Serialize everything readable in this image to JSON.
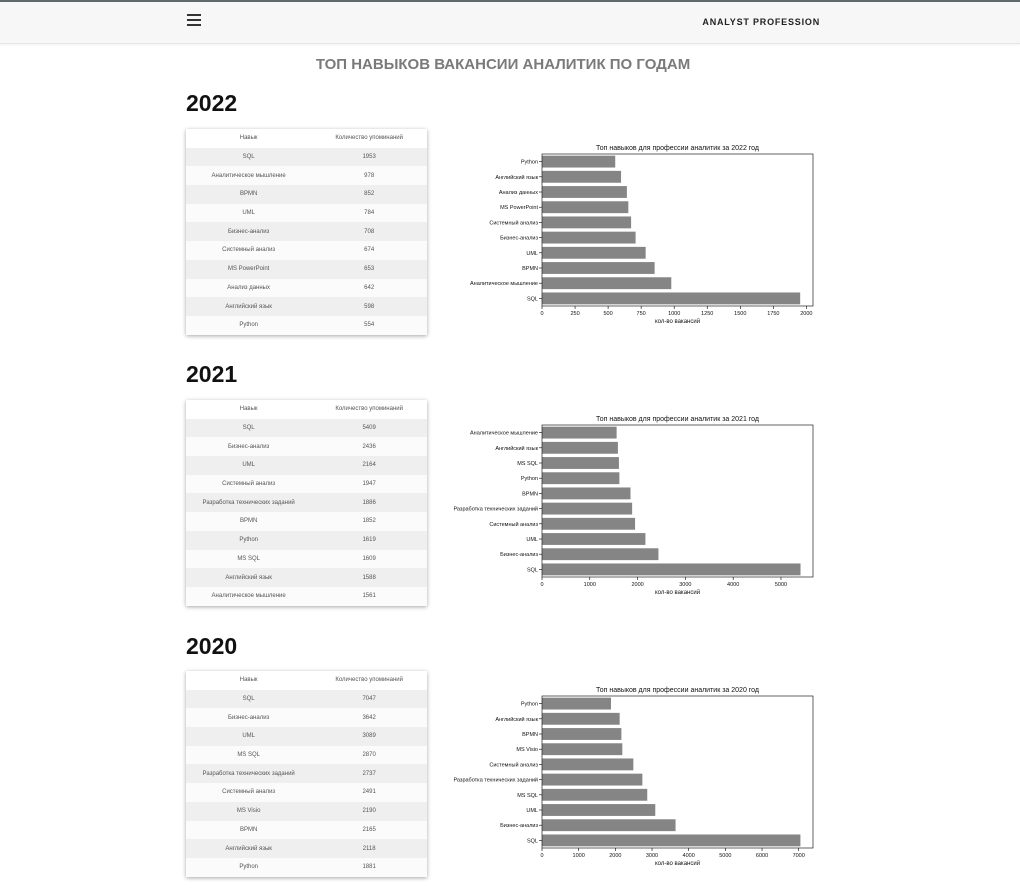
{
  "header": {
    "brand": "ANALYST PROFESSION",
    "menu_icon": "hamburger-icon"
  },
  "page_title": "ТОП НАВЫКОВ ВАКАНСИИ АНАЛИТИК ПО ГОДАМ",
  "table_headers": {
    "skill": "Навык",
    "count": "Количество упоминаний"
  },
  "colors": {
    "bar": "#858585"
  },
  "years": [
    {
      "year": "2022",
      "rows": [
        {
          "skill": "SQL",
          "count": "1953"
        },
        {
          "skill": "Аналитическое мышление",
          "count": "978"
        },
        {
          "skill": "BPMN",
          "count": "852"
        },
        {
          "skill": "UML",
          "count": "784"
        },
        {
          "skill": "Бизнес-анализ",
          "count": "708"
        },
        {
          "skill": "Системный анализ",
          "count": "674"
        },
        {
          "skill": "MS PowerPoint",
          "count": "653"
        },
        {
          "skill": "Анализ данных",
          "count": "642"
        },
        {
          "skill": "Английский язык",
          "count": "598"
        },
        {
          "skill": "Python",
          "count": "554"
        }
      ]
    },
    {
      "year": "2021",
      "rows": [
        {
          "skill": "SQL",
          "count": "5409"
        },
        {
          "skill": "Бизнес-анализ",
          "count": "2436"
        },
        {
          "skill": "UML",
          "count": "2164"
        },
        {
          "skill": "Системный анализ",
          "count": "1947"
        },
        {
          "skill": "Разработка технических заданий",
          "count": "1886"
        },
        {
          "skill": "BPMN",
          "count": "1852"
        },
        {
          "skill": "Python",
          "count": "1619"
        },
        {
          "skill": "MS SQL",
          "count": "1609"
        },
        {
          "skill": "Английский язык",
          "count": "1588"
        },
        {
          "skill": "Аналитическое мышление",
          "count": "1561"
        }
      ]
    },
    {
      "year": "2020",
      "rows": [
        {
          "skill": "SQL",
          "count": "7047"
        },
        {
          "skill": "Бизнес-анализ",
          "count": "3642"
        },
        {
          "skill": "UML",
          "count": "3089"
        },
        {
          "skill": "MS SQL",
          "count": "2870"
        },
        {
          "skill": "Разработка технических заданий",
          "count": "2737"
        },
        {
          "skill": "Системный анализ",
          "count": "2491"
        },
        {
          "skill": "MS Visio",
          "count": "2190"
        },
        {
          "skill": "BPMN",
          "count": "2165"
        },
        {
          "skill": "Английский язык",
          "count": "2118"
        },
        {
          "skill": "Python",
          "count": "1881"
        }
      ]
    }
  ],
  "chart_data": [
    {
      "type": "bar",
      "orientation": "horizontal",
      "title": "Топ навыков для профессии аналитик за 2022 год",
      "xlabel": "кол-во вакансий",
      "ylabel": "",
      "categories": [
        "SQL",
        "Аналитическое мышление",
        "BPMN",
        "UML",
        "Бизнес-анализ",
        "Системный анализ",
        "MS PowerPoint",
        "Анализ данных",
        "Английский язык",
        "Python"
      ],
      "values": [
        1953,
        978,
        852,
        784,
        708,
        674,
        653,
        642,
        598,
        554
      ],
      "xlim": [
        0,
        2050
      ],
      "xticks": [
        0,
        250,
        500,
        750,
        1000,
        1250,
        1500,
        1750,
        2000
      ],
      "grid": false
    },
    {
      "type": "bar",
      "orientation": "horizontal",
      "title": "Топ навыков для профессии аналитик за 2021 год",
      "xlabel": "кол-во вакансий",
      "ylabel": "",
      "categories": [
        "SQL",
        "Бизнес-анализ",
        "UML",
        "Системный анализ",
        "Разработка технических заданий",
        "BPMN",
        "Python",
        "MS SQL",
        "Английский язык",
        "Аналитическое мышление"
      ],
      "values": [
        5409,
        2436,
        2164,
        1947,
        1886,
        1852,
        1619,
        1609,
        1588,
        1561
      ],
      "xlim": [
        0,
        5670
      ],
      "xticks": [
        0,
        1000,
        2000,
        3000,
        4000,
        5000
      ],
      "grid": false
    },
    {
      "type": "bar",
      "orientation": "horizontal",
      "title": "Топ навыков для профессии аналитик за 2020 год",
      "xlabel": "кол-во вакансий",
      "ylabel": "",
      "categories": [
        "SQL",
        "Бизнес-анализ",
        "UML",
        "MS SQL",
        "Разработка технических заданий",
        "Системный анализ",
        "MS Visio",
        "BPMN",
        "Английский язык",
        "Python"
      ],
      "values": [
        7047,
        3642,
        3089,
        2870,
        2737,
        2491,
        2190,
        2165,
        2118,
        1881
      ],
      "xlim": [
        0,
        7390
      ],
      "xticks": [
        0,
        1000,
        2000,
        3000,
        4000,
        5000,
        6000,
        7000
      ],
      "grid": false
    }
  ]
}
